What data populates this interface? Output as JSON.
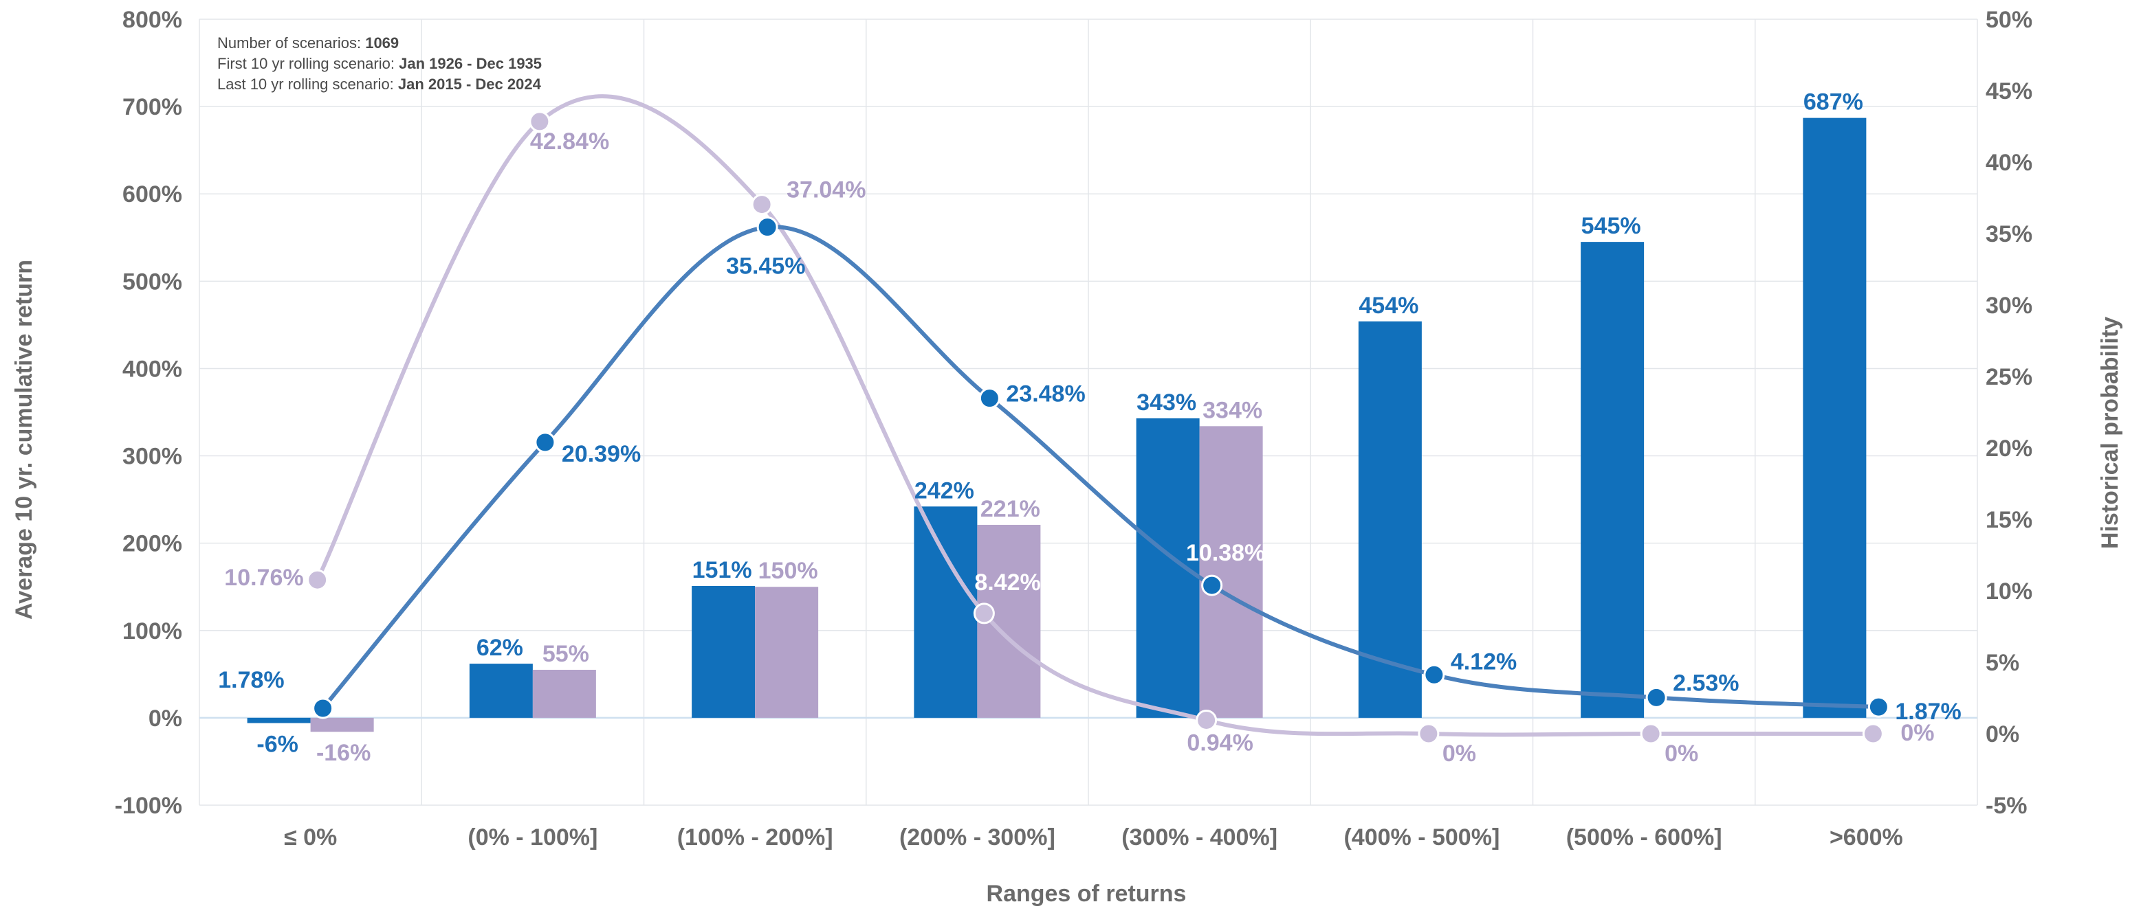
{
  "chart_data": {
    "type": "bar",
    "categories": [
      "≤ 0%",
      "(0% -  100%]",
      "(100% - 200%]",
      "(200% - 300%]",
      "(300% - 400%]",
      "(400% - 500%]",
      "(500% - 600%]",
      ">600%"
    ],
    "xlabel": "Ranges of returns",
    "ylabel": "Average 10 yr. cumulative return",
    "y2label": "Historical probability",
    "ylim": [
      -100,
      800
    ],
    "y2lim": [
      -5,
      50
    ],
    "yticks": [
      "-100%",
      "0%",
      "100%",
      "200%",
      "300%",
      "400%",
      "500%",
      "600%",
      "700%",
      "800%"
    ],
    "y2ticks": [
      "-5%",
      "0%",
      "5%",
      "10%",
      "15%",
      "20%",
      "25%",
      "30%",
      "35%",
      "40%",
      "45%",
      "50%"
    ],
    "grid": true,
    "info": {
      "line1_label": "Number of scenarios: ",
      "line1_value": "1069",
      "line2_label": "First 10 yr rolling scenario: ",
      "line2_value": "Jan 1926 - Dec 1935",
      "line3_label": "Last 10 yr rolling scenario: ",
      "line3_value": "Jan 2015 - Dec 2024"
    },
    "colors": {
      "bar_blue": "#1170bb",
      "bar_purple": "#b3a2c9",
      "line_blue": "#4a80bc",
      "line_purple": "#c9bedb",
      "label_blue": "#1c6fb8",
      "label_purple": "#ad9fc6",
      "grid": "#e3e6ea",
      "axis_text": "#6b6b6b"
    },
    "bar_series": [
      {
        "values": [
          -6,
          62,
          151,
          242,
          343,
          454,
          545,
          687
        ],
        "labels": [
          "-6%",
          "62%",
          "151%",
          "242%",
          "343%",
          "454%",
          "545%",
          "687%"
        ]
      },
      {
        "values": [
          -16,
          55,
          150,
          221,
          334,
          null,
          null,
          null
        ],
        "labels": [
          "-16%",
          "55%",
          "150%",
          "221%",
          "334%",
          "",
          "",
          ""
        ]
      }
    ],
    "line_series": [
      {
        "values": [
          1.78,
          20.39,
          35.45,
          23.48,
          10.38,
          4.12,
          2.53,
          1.87
        ],
        "labels": [
          "1.78%",
          "20.39%",
          "35.45%",
          "23.48%",
          "10.38%",
          "4.12%",
          "2.53%",
          "1.87%"
        ]
      },
      {
        "values": [
          10.76,
          42.84,
          37.04,
          8.42,
          0.94,
          0,
          0,
          0
        ],
        "labels": [
          "10.76%",
          "42.84%",
          "37.04%",
          "8.42%",
          "0.94%",
          "0%",
          "0%",
          "0%"
        ]
      }
    ]
  }
}
